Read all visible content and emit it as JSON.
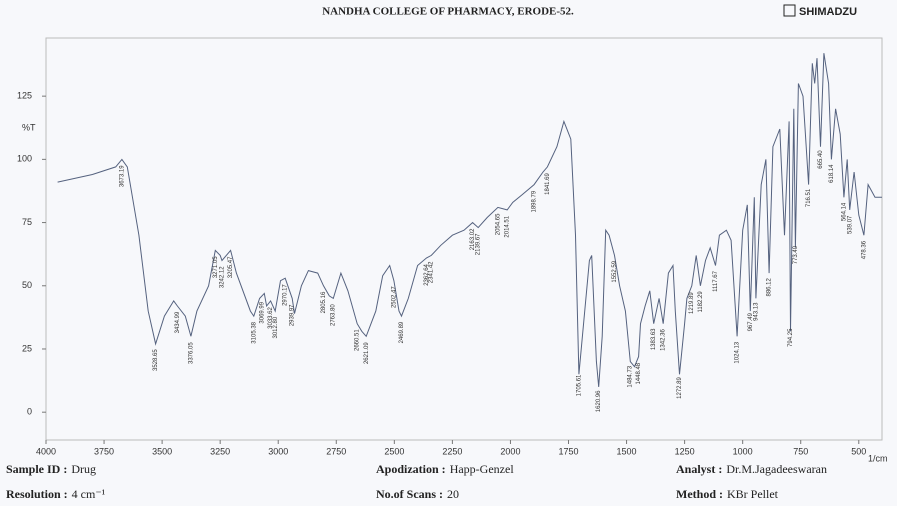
{
  "header": {
    "title": "NANDHA COLLEGE OF PHARMACY, ERODE-52.",
    "brand": "SHIMADZU"
  },
  "chart_data": {
    "type": "line",
    "y_label": "%T",
    "x_label": "1/cm",
    "xlim": [
      4000,
      400
    ],
    "ylim": [
      -11,
      148
    ],
    "xticks": [
      4000,
      3750,
      3500,
      3250,
      3000,
      2750,
      2500,
      2250,
      2000,
      1750,
      1500,
      1250,
      1000,
      750,
      500
    ],
    "yticks": [
      0,
      25,
      50,
      75,
      100,
      125
    ],
    "series": [
      {
        "name": "Drug",
        "color": "#55627f",
        "x": [
          3950,
          3800,
          3700,
          3673,
          3650,
          3600,
          3560,
          3528,
          3490,
          3450,
          3434,
          3400,
          3376,
          3350,
          3300,
          3271,
          3250,
          3242,
          3205,
          3180,
          3120,
          3105,
          3080,
          3060,
          3050,
          3033,
          3013,
          2990,
          2970,
          2940,
          2930,
          2900,
          2870,
          2830,
          2805,
          2780,
          2763,
          2730,
          2700,
          2660,
          2640,
          2621,
          2580,
          2550,
          2520,
          2502,
          2480,
          2469,
          2440,
          2400,
          2362,
          2341,
          2300,
          2250,
          2200,
          2163,
          2139,
          2100,
          2054,
          2014,
          1990,
          1950,
          1898,
          1860,
          1841,
          1800,
          1770,
          1740,
          1720,
          1705,
          1690,
          1660,
          1650,
          1630,
          1620,
          1605,
          1590,
          1575,
          1552,
          1530,
          1505,
          1484,
          1466,
          1448,
          1440,
          1420,
          1400,
          1383,
          1360,
          1342,
          1320,
          1300,
          1290,
          1272,
          1250,
          1240,
          1219,
          1200,
          1182,
          1160,
          1140,
          1117,
          1100,
          1070,
          1050,
          1024,
          1000,
          980,
          967,
          950,
          943,
          920,
          900,
          886,
          870,
          840,
          820,
          800,
          794,
          780,
          773,
          760,
          740,
          716,
          700,
          690,
          680,
          665,
          650,
          630,
          618,
          600,
          580,
          564,
          550,
          539,
          520,
          500,
          478,
          460,
          430,
          400
        ],
        "values": [
          91,
          94,
          97,
          100,
          97,
          70,
          40,
          27,
          38,
          44,
          42,
          38,
          30,
          40,
          50,
          64,
          62,
          60,
          64,
          55,
          40,
          38,
          45,
          47,
          42,
          44,
          40,
          52,
          53,
          45,
          39,
          50,
          56,
          55,
          50,
          46,
          45,
          55,
          48,
          35,
          32,
          30,
          40,
          54,
          58,
          52,
          40,
          38,
          45,
          58,
          61,
          62,
          66,
          70,
          72,
          75,
          73,
          77,
          81,
          80,
          83,
          86,
          90,
          95,
          97,
          105,
          115,
          108,
          70,
          15,
          30,
          60,
          62,
          20,
          10,
          30,
          72,
          70,
          62,
          50,
          40,
          20,
          18,
          22,
          35,
          42,
          48,
          35,
          45,
          35,
          55,
          58,
          40,
          15,
          35,
          45,
          50,
          62,
          50,
          60,
          65,
          58,
          70,
          72,
          68,
          30,
          72,
          82,
          40,
          85,
          45,
          90,
          100,
          55,
          105,
          112,
          70,
          115,
          32,
          120,
          65,
          130,
          125,
          90,
          138,
          130,
          140,
          105,
          142,
          130,
          100,
          120,
          110,
          85,
          100,
          80,
          95,
          78,
          70,
          90,
          85,
          85
        ]
      }
    ],
    "annotations": [
      "3673.19",
      "3528.65",
      "3434.99",
      "3376.05",
      "3271.05",
      "3242.12",
      "3205.47",
      "3105.38",
      "3069.99",
      "3033.62",
      "3012.80",
      "2970.17",
      "2939.97",
      "2805.16",
      "2763.80",
      "2660.51",
      "2621.09",
      "2502.47",
      "2469.89",
      "2362.64",
      "2341.42",
      "2163.02",
      "2139.67",
      "2054.65",
      "2014.51",
      "1898.79",
      "1841.69",
      "1705.61",
      "1620.96",
      "1552.59",
      "1484.73",
      "1448.48",
      "1383.63",
      "1342.36",
      "1272.89",
      "1219.89",
      "1182.29",
      "1117.67",
      "1024.13",
      "967.49",
      "943.13",
      "886.12",
      "794.25",
      "773.40",
      "716.51",
      "665.40",
      "618.14",
      "564.14",
      "539.07",
      "478.36"
    ]
  },
  "info": [
    {
      "label": "Sample ID :",
      "value": "Drug"
    },
    {
      "label": "Resolution :",
      "value": "4 cm⁻¹"
    },
    {
      "label": "Apodization :",
      "value": "Happ-Genzel"
    },
    {
      "label": "No.of Scans :",
      "value": "20"
    },
    {
      "label": "Analyst :",
      "value": "Dr.M.Jagadeeswaran"
    },
    {
      "label": "Method :",
      "value": "KBr Pellet"
    }
  ]
}
